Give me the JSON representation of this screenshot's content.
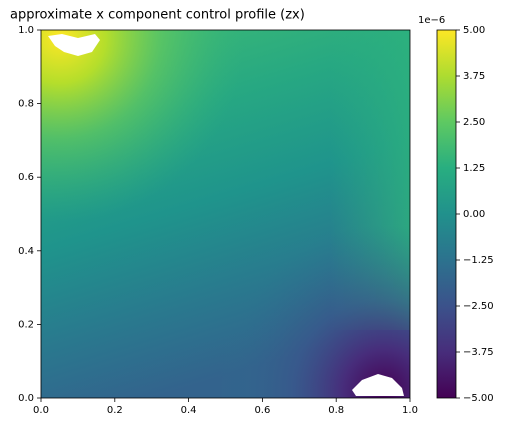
{
  "chart_data": {
    "type": "contour",
    "title": "approximate x component control profile (zx)",
    "xlim": [
      0,
      1
    ],
    "ylim": [
      0,
      1
    ],
    "xticks": [
      {
        "value": 0,
        "label": "0.0"
      },
      0.2,
      0.4,
      0.6,
      0.8,
      {
        "value": 1,
        "label": "1.0"
      }
    ],
    "yticks": [
      {
        "value": 0,
        "label": "0.0"
      },
      0.2,
      0.4,
      0.6,
      0.8,
      {
        "value": 1,
        "label": "1.0"
      }
    ],
    "colorbar": {
      "lim": [
        -5,
        5
      ],
      "offset_label": "1e−6",
      "ticks": [
        {
          "value": -5,
          "label": "−5.00"
        },
        {
          "value": -3.75,
          "label": "−3.75"
        },
        {
          "value": -2.5,
          "label": "−2.50"
        },
        {
          "value": -1.25,
          "label": "−1.25"
        },
        {
          "value": 0,
          "label": "0.00"
        },
        {
          "value": 1.25,
          "label": "1.25"
        },
        {
          "value": 2.5,
          "label": "2.50"
        },
        {
          "value": 3.75,
          "label": "3.75"
        },
        {
          "value": 5,
          "label": "5.00"
        }
      ]
    }
  }
}
